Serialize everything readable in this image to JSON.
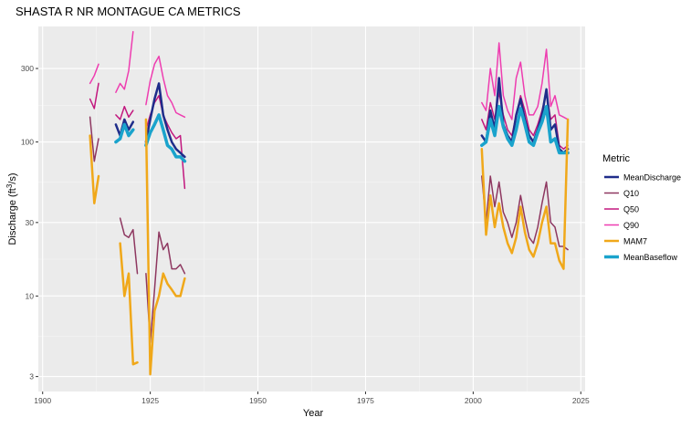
{
  "chart_data": {
    "type": "line",
    "title": "SHASTA R NR  MONTAGUE CA  METRICS",
    "xlabel": "Year",
    "ylabel": "Discharge (ft³/s)",
    "ylabel_parts": {
      "pre": "Discharge (ft",
      "sup": "3",
      "post": "/s)"
    },
    "xlim": [
      1899,
      2026
    ],
    "ylim_log10": [
      0.38,
      2.75
    ],
    "y_scale": "log10",
    "x_ticks": [
      1900,
      1925,
      1950,
      1975,
      2000,
      2025
    ],
    "x_tick_labels": [
      "1900",
      "1925",
      "1950",
      "1975",
      "2000",
      "2025"
    ],
    "y_ticks": [
      3,
      10,
      30,
      100,
      300
    ],
    "y_tick_labels": [
      "3",
      "10",
      "30",
      "100",
      "300"
    ],
    "grid": true,
    "legend_title": "Metric",
    "legend_position": "right",
    "series": [
      {
        "name": "Q90",
        "color": "#ee3db0",
        "width": 1.5,
        "segments": [
          [
            [
              1911,
              240
            ],
            [
              1912,
              270
            ],
            [
              1913,
              320
            ]
          ],
          [
            [
              1917,
              210
            ],
            [
              1918,
              240
            ],
            [
              1919,
              220
            ],
            [
              1920,
              290
            ],
            [
              1921,
              520
            ]
          ],
          [
            [
              1924,
              175
            ],
            [
              1925,
              250
            ],
            [
              1926,
              320
            ],
            [
              1927,
              360
            ],
            [
              1928,
              260
            ],
            [
              1929,
              200
            ],
            [
              1930,
              180
            ],
            [
              1931,
              155
            ],
            [
              1932,
              150
            ],
            [
              1933,
              145
            ]
          ],
          [
            [
              2002,
              180
            ],
            [
              2003,
              160
            ],
            [
              2004,
              300
            ],
            [
              2005,
              200
            ],
            [
              2006,
              440
            ],
            [
              2007,
              200
            ],
            [
              2008,
              160
            ],
            [
              2009,
              140
            ],
            [
              2010,
              260
            ],
            [
              2011,
              330
            ],
            [
              2012,
              200
            ],
            [
              2013,
              150
            ],
            [
              2014,
              150
            ],
            [
              2015,
              170
            ],
            [
              2016,
              240
            ],
            [
              2017,
              400
            ],
            [
              2018,
              170
            ],
            [
              2019,
              200
            ],
            [
              2020,
              150
            ],
            [
              2021,
              145
            ],
            [
              2022,
              140
            ]
          ]
        ]
      },
      {
        "name": "Q50",
        "color": "#c2177e",
        "width": 1.5,
        "segments": [
          [
            [
              1911,
              190
            ],
            [
              1912,
              165
            ],
            [
              1913,
              240
            ]
          ],
          [
            [
              1917,
              150
            ],
            [
              1918,
              140
            ],
            [
              1919,
              170
            ],
            [
              1920,
              145
            ],
            [
              1921,
              160
            ]
          ],
          [
            [
              1924,
              120
            ],
            [
              1925,
              150
            ],
            [
              1926,
              180
            ],
            [
              1927,
              200
            ],
            [
              1928,
              150
            ],
            [
              1929,
              130
            ],
            [
              1930,
              115
            ],
            [
              1931,
              105
            ],
            [
              1932,
              110
            ],
            [
              1933,
              50
            ]
          ],
          [
            [
              2002,
              140
            ],
            [
              2003,
              120
            ],
            [
              2004,
              180
            ],
            [
              2005,
              140
            ],
            [
              2006,
              210
            ],
            [
              2007,
              150
            ],
            [
              2008,
              120
            ],
            [
              2009,
              110
            ],
            [
              2010,
              150
            ],
            [
              2011,
              200
            ],
            [
              2012,
              160
            ],
            [
              2013,
              120
            ],
            [
              2014,
              110
            ],
            [
              2015,
              130
            ],
            [
              2016,
              160
            ],
            [
              2017,
              210
            ],
            [
              2018,
              140
            ],
            [
              2019,
              150
            ],
            [
              2020,
              95
            ],
            [
              2021,
              90
            ],
            [
              2022,
              95
            ]
          ]
        ]
      },
      {
        "name": "MeanDischarge",
        "color": "#1f2d8a",
        "width": 2.5,
        "segments": [
          [
            [
              1917,
              130
            ],
            [
              1918,
              110
            ],
            [
              1919,
              140
            ],
            [
              1920,
              120
            ],
            [
              1921,
              135
            ]
          ],
          [
            [
              1924,
              100
            ],
            [
              1925,
              140
            ],
            [
              1926,
              190
            ],
            [
              1927,
              240
            ],
            [
              1928,
              150
            ],
            [
              1929,
              120
            ],
            [
              1930,
              100
            ],
            [
              1931,
              90
            ],
            [
              1932,
              85
            ],
            [
              1933,
              80
            ]
          ],
          [
            [
              2002,
              110
            ],
            [
              2003,
              100
            ],
            [
              2004,
              160
            ],
            [
              2005,
              120
            ],
            [
              2006,
              260
            ],
            [
              2007,
              130
            ],
            [
              2008,
              110
            ],
            [
              2009,
              100
            ],
            [
              2010,
              150
            ],
            [
              2011,
              190
            ],
            [
              2012,
              140
            ],
            [
              2013,
              110
            ],
            [
              2014,
              100
            ],
            [
              2015,
              120
            ],
            [
              2016,
              150
            ],
            [
              2017,
              220
            ],
            [
              2018,
              120
            ],
            [
              2019,
              130
            ],
            [
              2020,
              90
            ],
            [
              2021,
              85
            ],
            [
              2022,
              90
            ]
          ]
        ]
      },
      {
        "name": "MeanBaseflow",
        "color": "#1aa3cc",
        "width": 3.5,
        "segments": [
          [
            [
              1917,
              100
            ],
            [
              1918,
              105
            ],
            [
              1919,
              130
            ],
            [
              1920,
              110
            ],
            [
              1921,
              120
            ]
          ],
          [
            [
              1924,
              95
            ],
            [
              1925,
              115
            ],
            [
              1926,
              130
            ],
            [
              1927,
              150
            ],
            [
              1928,
              120
            ],
            [
              1929,
              95
            ],
            [
              1930,
              90
            ],
            [
              1931,
              80
            ],
            [
              1932,
              80
            ],
            [
              1933,
              75
            ]
          ],
          [
            [
              2002,
              95
            ],
            [
              2003,
              100
            ],
            [
              2004,
              140
            ],
            [
              2005,
              110
            ],
            [
              2006,
              170
            ],
            [
              2007,
              125
            ],
            [
              2008,
              105
            ],
            [
              2009,
              95
            ],
            [
              2010,
              120
            ],
            [
              2011,
              165
            ],
            [
              2012,
              130
            ],
            [
              2013,
              100
            ],
            [
              2014,
              95
            ],
            [
              2015,
              115
            ],
            [
              2016,
              135
            ],
            [
              2017,
              170
            ],
            [
              2018,
              100
            ],
            [
              2019,
              105
            ],
            [
              2020,
              85
            ],
            [
              2021,
              85
            ],
            [
              2022,
              85
            ]
          ]
        ]
      },
      {
        "name": "Q10",
        "color": "#8e3760",
        "width": 1.5,
        "segments": [
          [
            [
              1911,
              145
            ],
            [
              1912,
              75
            ],
            [
              1913,
              105
            ]
          ],
          [
            [
              1918,
              32
            ],
            [
              1919,
              25
            ],
            [
              1920,
              24
            ],
            [
              1921,
              27
            ],
            [
              1922,
              14
            ]
          ],
          [
            [
              1924,
              14
            ],
            [
              1925,
              5
            ],
            [
              1926,
              11
            ],
            [
              1927,
              26
            ],
            [
              1928,
              20
            ],
            [
              1929,
              22
            ],
            [
              1930,
              15
            ],
            [
              1931,
              15
            ],
            [
              1932,
              16
            ],
            [
              1933,
              14
            ]
          ],
          [
            [
              2002,
              60
            ],
            [
              2003,
              30
            ],
            [
              2004,
              60
            ],
            [
              2005,
              38
            ],
            [
              2006,
              55
            ],
            [
              2007,
              35
            ],
            [
              2008,
              30
            ],
            [
              2009,
              24
            ],
            [
              2010,
              30
            ],
            [
              2011,
              45
            ],
            [
              2012,
              32
            ],
            [
              2013,
              24
            ],
            [
              2014,
              22
            ],
            [
              2015,
              28
            ],
            [
              2016,
              40
            ],
            [
              2017,
              55
            ],
            [
              2018,
              30
            ],
            [
              2019,
              28
            ],
            [
              2020,
              21
            ],
            [
              2021,
              21
            ],
            [
              2022,
              20
            ]
          ]
        ]
      },
      {
        "name": "MAM7",
        "color": "#f0a81a",
        "width": 2.5,
        "segments": [
          [
            [
              1911,
              110
            ],
            [
              1912,
              40
            ],
            [
              1913,
              60
            ]
          ],
          [
            [
              1918,
              22
            ],
            [
              1919,
              10
            ],
            [
              1920,
              14
            ],
            [
              1921,
              3.6
            ],
            [
              1922,
              3.7
            ]
          ],
          [
            [
              1924,
              140
            ],
            [
              1925,
              3.1
            ],
            [
              1926,
              8
            ],
            [
              1927,
              10
            ],
            [
              1928,
              14
            ],
            [
              1929,
              12
            ],
            [
              1930,
              11
            ],
            [
              1931,
              10
            ],
            [
              1932,
              10
            ],
            [
              1933,
              13
            ]
          ],
          [
            [
              2002,
              90
            ],
            [
              2003,
              25
            ],
            [
              2004,
              45
            ],
            [
              2005,
              28
            ],
            [
              2006,
              40
            ],
            [
              2007,
              28
            ],
            [
              2008,
              22
            ],
            [
              2009,
              19
            ],
            [
              2010,
              24
            ],
            [
              2011,
              38
            ],
            [
              2012,
              26
            ],
            [
              2013,
              20
            ],
            [
              2014,
              18
            ],
            [
              2015,
              22
            ],
            [
              2016,
              30
            ],
            [
              2017,
              38
            ],
            [
              2018,
              22
            ],
            [
              2019,
              22
            ],
            [
              2020,
              17
            ],
            [
              2021,
              15
            ],
            [
              2022,
              140
            ]
          ]
        ]
      }
    ],
    "legend_order": [
      "MeanDischarge",
      "Q10",
      "Q50",
      "Q90",
      "MAM7",
      "MeanBaseflow"
    ]
  }
}
